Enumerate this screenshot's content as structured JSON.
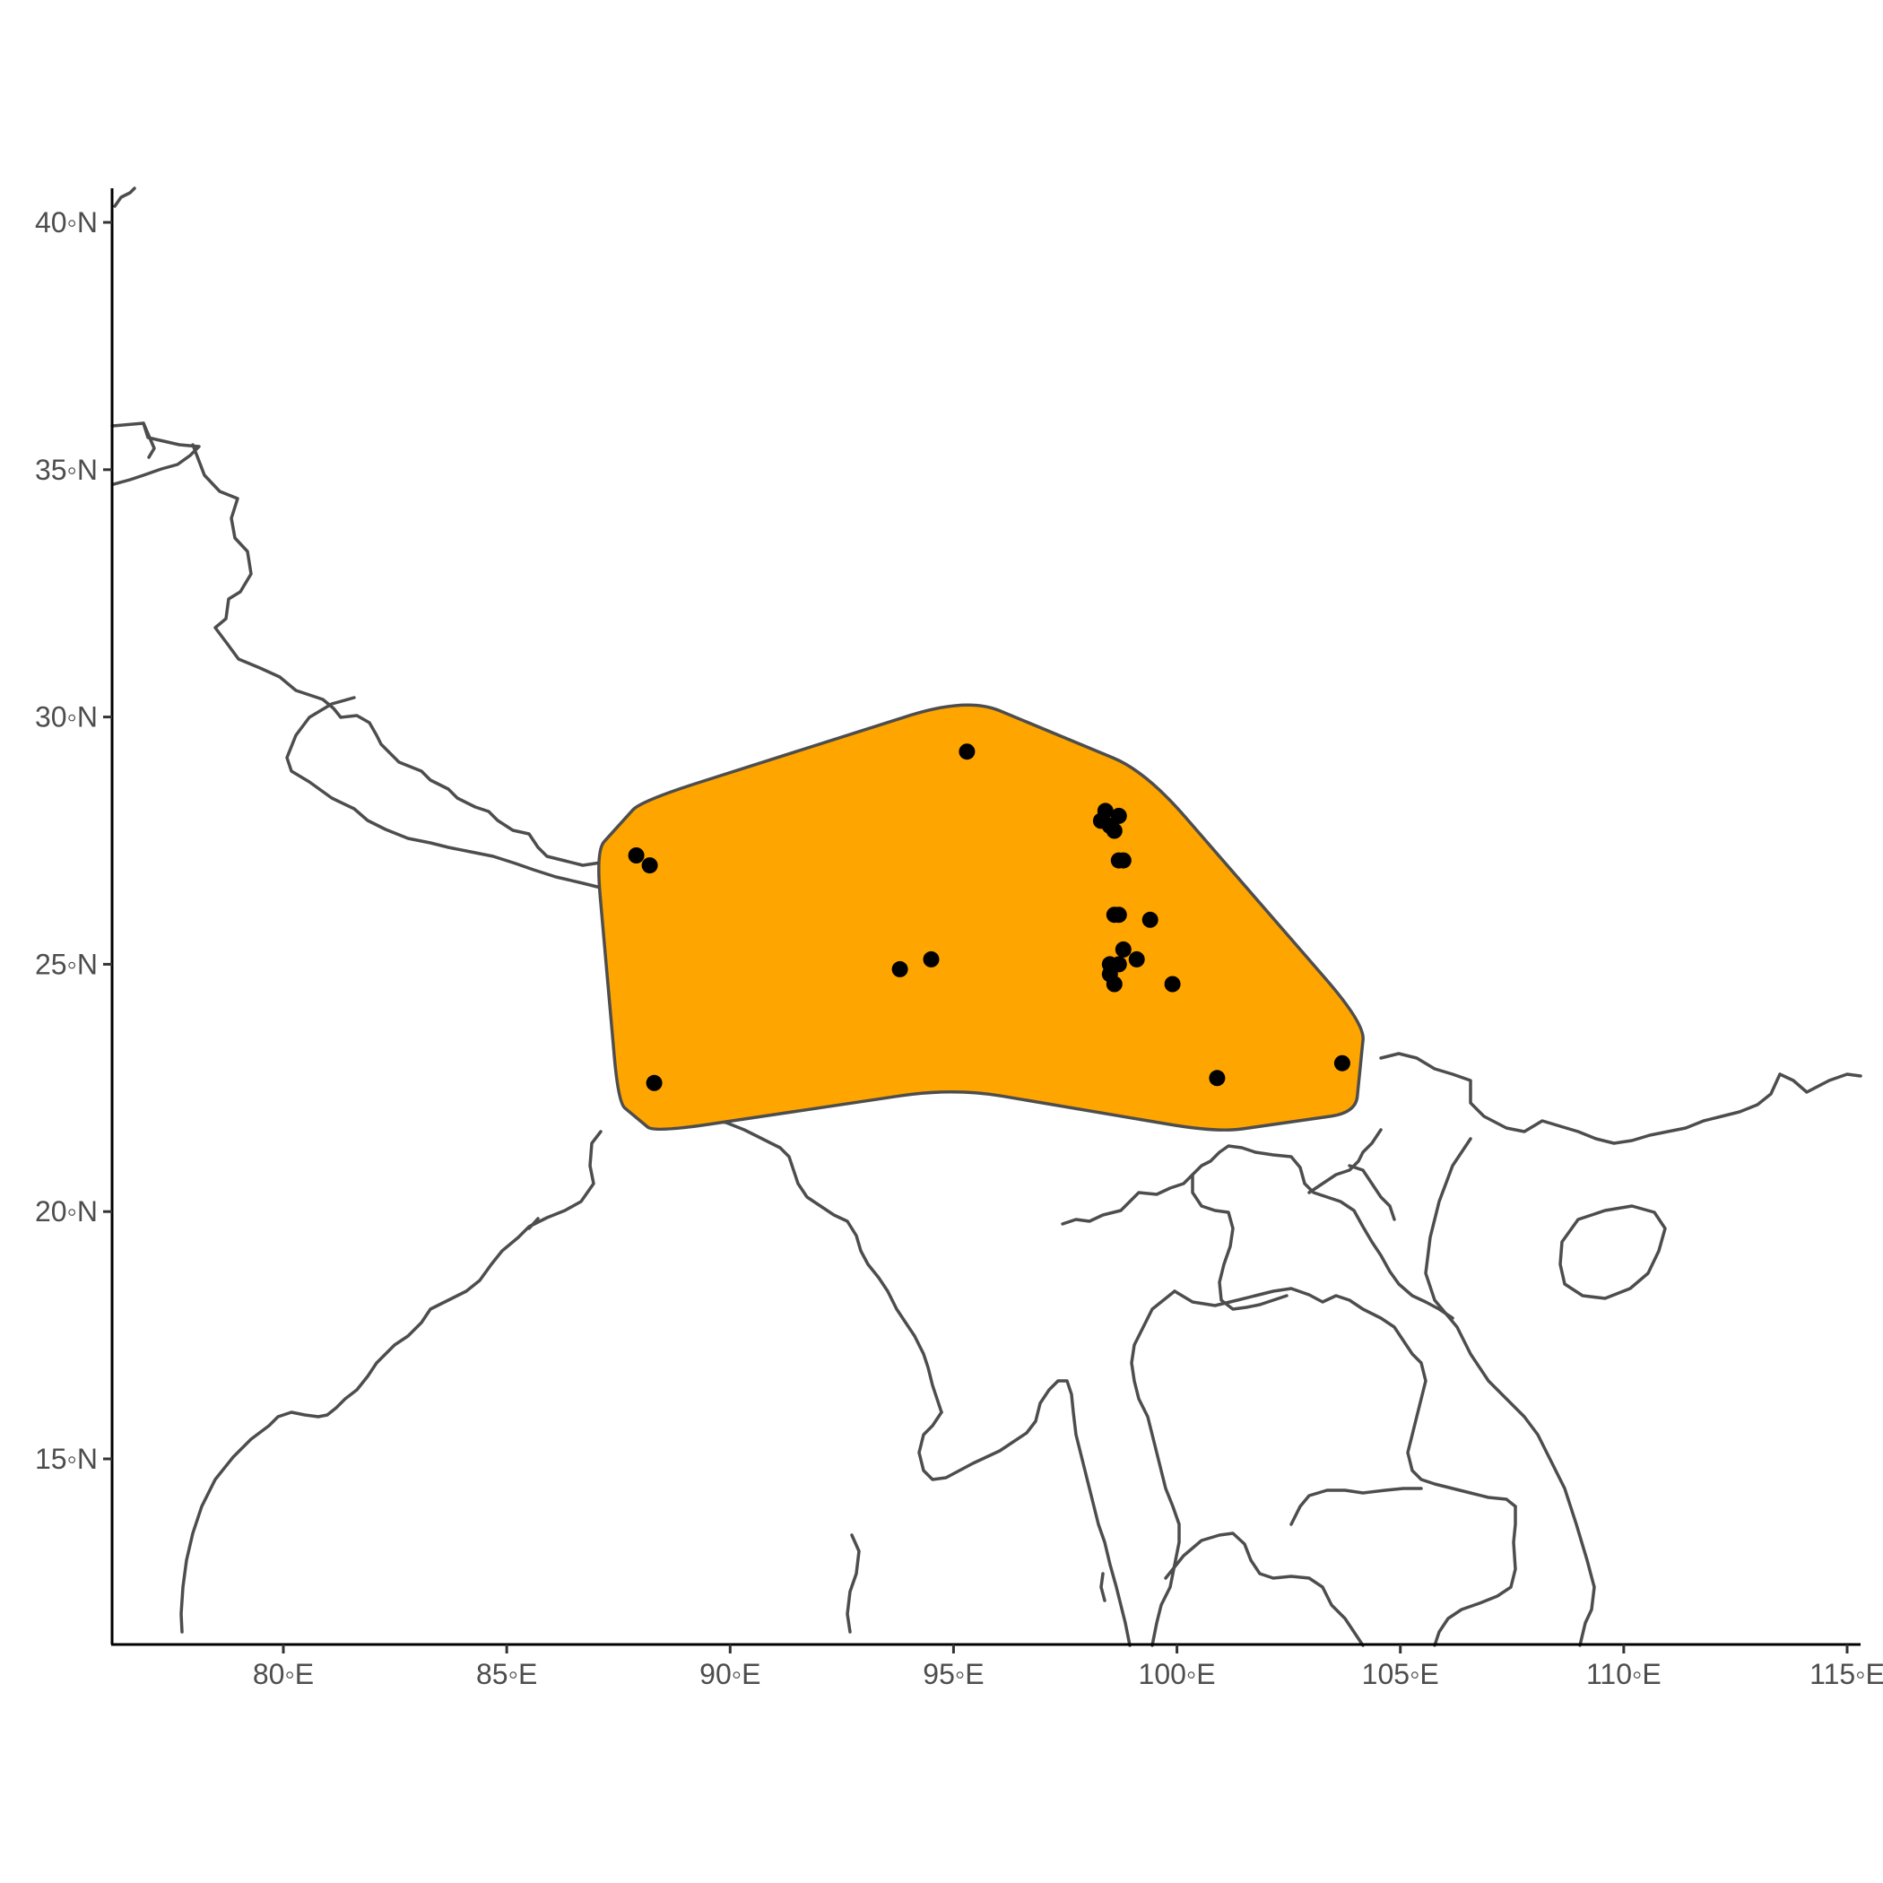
{
  "chart_data": {
    "type": "scatter",
    "subtype": "map",
    "projection": "equirectangular",
    "xlim": [
      76.1,
      115.4
    ],
    "ylim": [
      11.2,
      40.6
    ],
    "x_ticks": [
      {
        "value": 80,
        "label": "80◦E"
      },
      {
        "value": 85,
        "label": "85◦E"
      },
      {
        "value": 90,
        "label": "90◦E"
      },
      {
        "value": 95,
        "label": "95◦E"
      },
      {
        "value": 100,
        "label": "100◦E"
      },
      {
        "value": 105,
        "label": "105◦E"
      },
      {
        "value": 110,
        "label": "110◦E"
      },
      {
        "value": 115,
        "label": "115◦E"
      }
    ],
    "y_ticks": [
      {
        "value": 15,
        "label": "15◦N"
      },
      {
        "value": 20,
        "label": "20◦N"
      },
      {
        "value": 25,
        "label": "25◦N"
      },
      {
        "value": 30,
        "label": "30◦N"
      },
      {
        "value": 35,
        "label": "35◦N"
      },
      {
        "value": 40,
        "label": "40◦N"
      }
    ],
    "grid": false,
    "range_polygon": {
      "fill": "#ffa500",
      "stroke": "#4d4d4d",
      "vertices": [
        [
          88.0,
          28.3
        ],
        [
          95.3,
          30.4
        ],
        [
          99.3,
          28.9
        ],
        [
          104.2,
          23.8
        ],
        [
          104.0,
          22.0
        ],
        [
          100.9,
          21.6
        ],
        [
          95.0,
          22.5
        ],
        [
          88.3,
          21.6
        ],
        [
          87.5,
          22.2
        ],
        [
          87.0,
          27.3
        ]
      ]
    },
    "points": [
      {
        "lon": 87.9,
        "lat": 27.2
      },
      {
        "lon": 88.2,
        "lat": 27.0
      },
      {
        "lon": 88.3,
        "lat": 22.6
      },
      {
        "lon": 93.8,
        "lat": 24.9
      },
      {
        "lon": 94.5,
        "lat": 25.1
      },
      {
        "lon": 95.3,
        "lat": 29.3
      },
      {
        "lon": 98.3,
        "lat": 27.9
      },
      {
        "lon": 98.4,
        "lat": 28.1
      },
      {
        "lon": 98.5,
        "lat": 27.8
      },
      {
        "lon": 98.7,
        "lat": 28.0
      },
      {
        "lon": 98.6,
        "lat": 27.7
      },
      {
        "lon": 98.7,
        "lat": 27.1
      },
      {
        "lon": 98.8,
        "lat": 27.1
      },
      {
        "lon": 98.6,
        "lat": 26.0
      },
      {
        "lon": 98.7,
        "lat": 26.0
      },
      {
        "lon": 99.4,
        "lat": 25.9
      },
      {
        "lon": 98.8,
        "lat": 25.3
      },
      {
        "lon": 99.1,
        "lat": 25.1
      },
      {
        "lon": 98.5,
        "lat": 25.0
      },
      {
        "lon": 98.7,
        "lat": 25.0
      },
      {
        "lon": 98.5,
        "lat": 24.8
      },
      {
        "lon": 98.6,
        "lat": 24.6
      },
      {
        "lon": 99.9,
        "lat": 24.6
      },
      {
        "lon": 100.9,
        "lat": 22.7
      },
      {
        "lon": 103.7,
        "lat": 23.0
      }
    ]
  }
}
